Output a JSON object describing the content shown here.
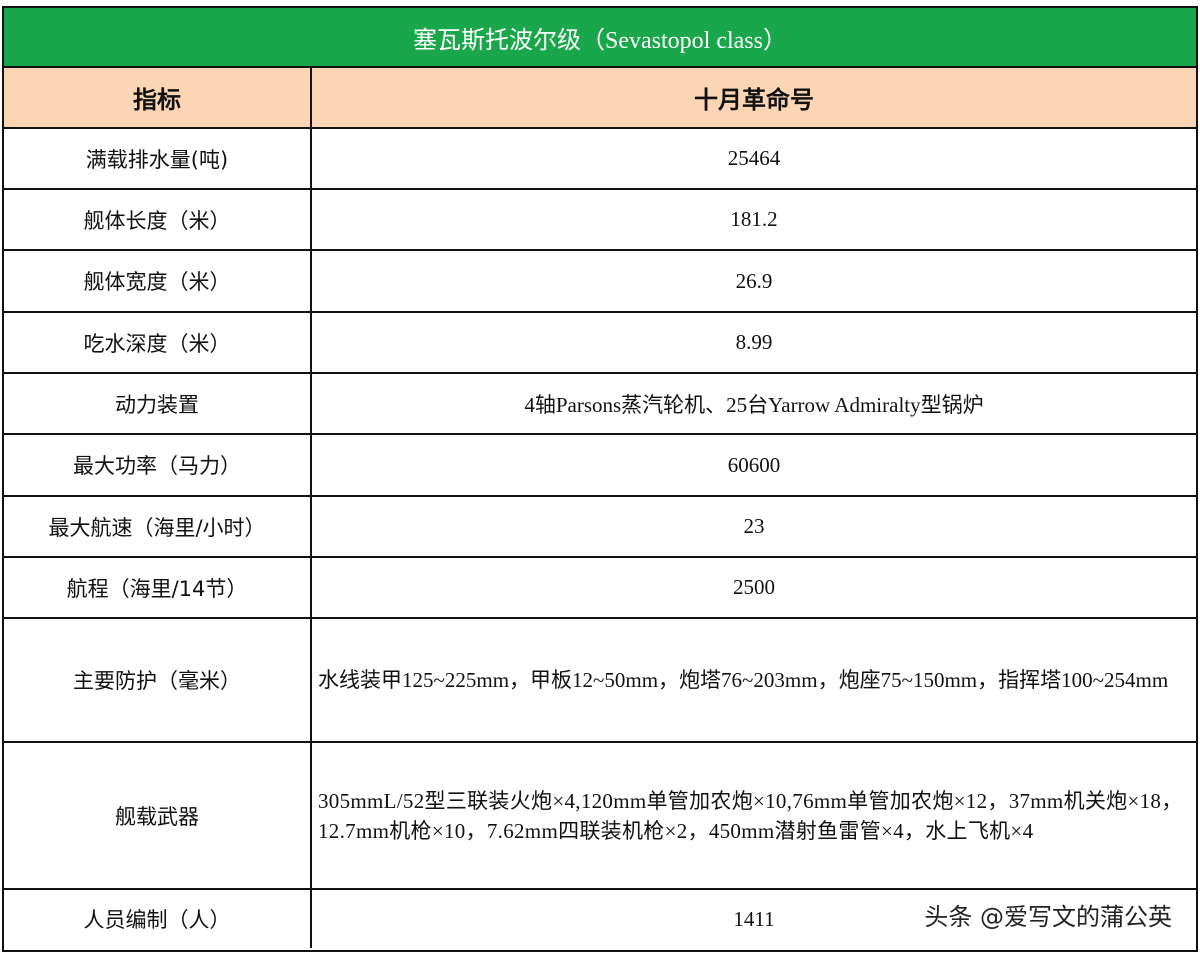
{
  "title": "塞瓦斯托波尔级（Sevastopol class）",
  "header": {
    "col1": "指标",
    "col2": "十月革命号"
  },
  "rows": [
    {
      "label": "满载排水量(吨)",
      "value": "25464"
    },
    {
      "label": "舰体长度（米）",
      "value": "181.2"
    },
    {
      "label": "舰体宽度（米）",
      "value": "26.9"
    },
    {
      "label": "吃水深度（米）",
      "value": "8.99"
    },
    {
      "label": "动力装置",
      "value": "4轴Parsons蒸汽轮机、25台Yarrow Admiralty型锅炉"
    },
    {
      "label": "最大功率（马力）",
      "value": "60600"
    },
    {
      "label": "最大航速（海里/小时）",
      "value": "23"
    },
    {
      "label": "航程（海里/14节）",
      "value": "2500"
    },
    {
      "label": "主要防护（毫米）",
      "value": "水线装甲125~225mm，甲板12~50mm，炮塔76~203mm，炮座75~150mm，指挥塔100~254mm"
    },
    {
      "label": "舰载武器",
      "value": "305mmL/52型三联装火炮×4,120mm单管加农炮×10,76mm单管加农炮×12，37mm机关炮×18，12.7mm机枪×10，7.62mm四联装机枪×2，450mm潜射鱼雷管×4，水上飞机×4"
    },
    {
      "label": "人员编制（人）",
      "value": "1411"
    }
  ],
  "watermark": "头条 @爱写文的蒲公英",
  "colors": {
    "title_bg": "#1aa64b",
    "header_bg": "#fcd5b4"
  }
}
